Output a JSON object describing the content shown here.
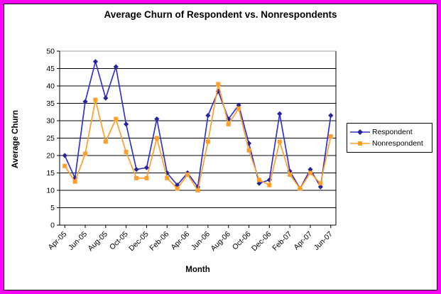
{
  "frame": {
    "border_color": "#ff00ff",
    "chart_background": "#ffffff"
  },
  "chart_data": {
    "type": "line",
    "title": "Average Churn of Respondent vs. Nonrespondents",
    "xlabel": "Month",
    "ylabel": "Average Churn",
    "ylim": [
      0,
      50
    ],
    "ytick_step": 5,
    "grid": true,
    "gridline_color": "#000000",
    "top_gridline_color": "#a0a0a0",
    "legend_position": "right",
    "x_label_every": 2,
    "categories": [
      "Apr-05",
      "May-05",
      "Jun-05",
      "Jul-05",
      "Aug-05",
      "Sep-05",
      "Oct-05",
      "Nov-05",
      "Dec-05",
      "Jan-06",
      "Feb-06",
      "Mar-06",
      "Apr-06",
      "May-06",
      "Jun-06",
      "Jul-06",
      "Aug-06",
      "Sep-06",
      "Oct-06",
      "Nov-06",
      "Dec-06",
      "Jan-07",
      "Feb-07",
      "Mar-07",
      "Apr-07",
      "May-07",
      "Jun-07"
    ],
    "series": [
      {
        "name": "Respondent",
        "marker": "diamond",
        "color": "#3333cc",
        "marker_color": "#24249e",
        "values": [
          20,
          13.5,
          35.5,
          47,
          36.5,
          45.5,
          29,
          16,
          16.5,
          30.5,
          15,
          11.5,
          15,
          11,
          31.5,
          38.5,
          30.5,
          34.5,
          23.5,
          12,
          13,
          32,
          15.5,
          10.5,
          16,
          11,
          31.5
        ]
      },
      {
        "name": "Nonrespondent",
        "marker": "square",
        "color": "#ff9f2a",
        "marker_color": "#ff9f2a",
        "values": [
          17,
          12.5,
          20.5,
          36,
          24,
          30.5,
          21,
          13.5,
          13.5,
          25,
          13.5,
          10.5,
          14.5,
          10,
          24,
          40.5,
          29,
          33.5,
          21.5,
          13,
          11.5,
          24,
          14.5,
          10.5,
          15,
          12,
          25.5
        ]
      }
    ]
  }
}
